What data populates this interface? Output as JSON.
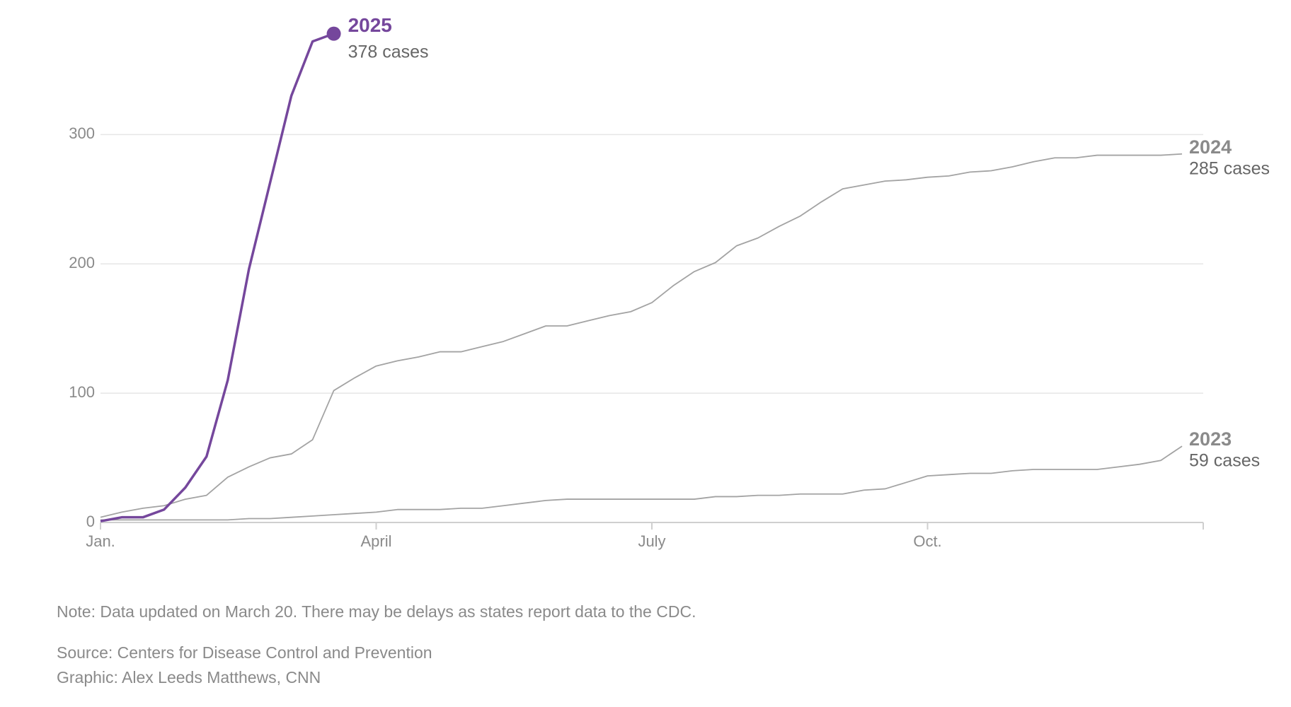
{
  "chart_data": {
    "type": "line",
    "x": [
      0,
      1,
      2,
      3,
      4,
      5,
      6,
      7,
      8,
      9,
      10,
      11,
      12,
      13,
      14,
      15,
      16,
      17,
      18,
      19,
      20,
      21,
      22,
      23,
      24,
      25,
      26,
      27,
      28,
      29,
      30,
      31,
      32,
      33,
      34,
      35,
      36,
      37,
      38,
      39,
      40,
      41,
      42,
      43,
      44,
      45,
      46,
      47,
      48,
      49,
      50,
      51
    ],
    "xlim": [
      0,
      52
    ],
    "xticks": [
      {
        "value": 0,
        "label": "Jan."
      },
      {
        "value": 13,
        "label": "April"
      },
      {
        "value": 26,
        "label": "July"
      },
      {
        "value": 39,
        "label": "Oct."
      }
    ],
    "ylim": [
      0,
      380
    ],
    "yticks": [
      0,
      100,
      200,
      300
    ],
    "grid": true,
    "series": [
      {
        "name": "2023",
        "color": "#a3a3a3",
        "end_label": "59 cases",
        "values": [
          2,
          2,
          2,
          2,
          2,
          2,
          2,
          3,
          3,
          4,
          5,
          6,
          7,
          8,
          10,
          10,
          10,
          11,
          11,
          13,
          15,
          17,
          18,
          18,
          18,
          18,
          18,
          18,
          18,
          20,
          20,
          21,
          21,
          22,
          22,
          22,
          25,
          26,
          31,
          36,
          37,
          38,
          38,
          40,
          41,
          41,
          41,
          41,
          43,
          45,
          48,
          59
        ]
      },
      {
        "name": "2024",
        "color": "#a3a3a3",
        "end_label": "285 cases",
        "values": [
          4,
          8,
          11,
          13,
          18,
          21,
          35,
          43,
          50,
          53,
          64,
          102,
          112,
          121,
          125,
          128,
          132,
          132,
          136,
          140,
          146,
          152,
          152,
          156,
          160,
          163,
          170,
          183,
          194,
          201,
          214,
          220,
          229,
          237,
          248,
          258,
          261,
          264,
          265,
          267,
          268,
          271,
          272,
          275,
          279,
          282,
          282,
          284,
          284,
          284,
          284,
          285
        ]
      },
      {
        "name": "2025",
        "color": "#75479c",
        "end_label": "378 cases",
        "values": [
          1,
          4,
          4,
          10,
          27,
          51,
          110,
          196,
          263,
          330,
          372,
          378,
          null,
          null,
          null,
          null,
          null,
          null,
          null,
          null,
          null,
          null,
          null,
          null,
          null,
          null,
          null,
          null,
          null,
          null,
          null,
          null,
          null,
          null,
          null,
          null,
          null,
          null,
          null,
          null,
          null,
          null,
          null,
          null,
          null,
          null,
          null,
          null,
          null,
          null,
          null,
          null
        ]
      }
    ],
    "note": "Note: Data updated on March 20. There may be delays as states report data to the CDC.",
    "source": "Source: Centers for Disease Control and Prevention",
    "credit": "Graphic: Alex Leeds Matthews, CNN"
  }
}
